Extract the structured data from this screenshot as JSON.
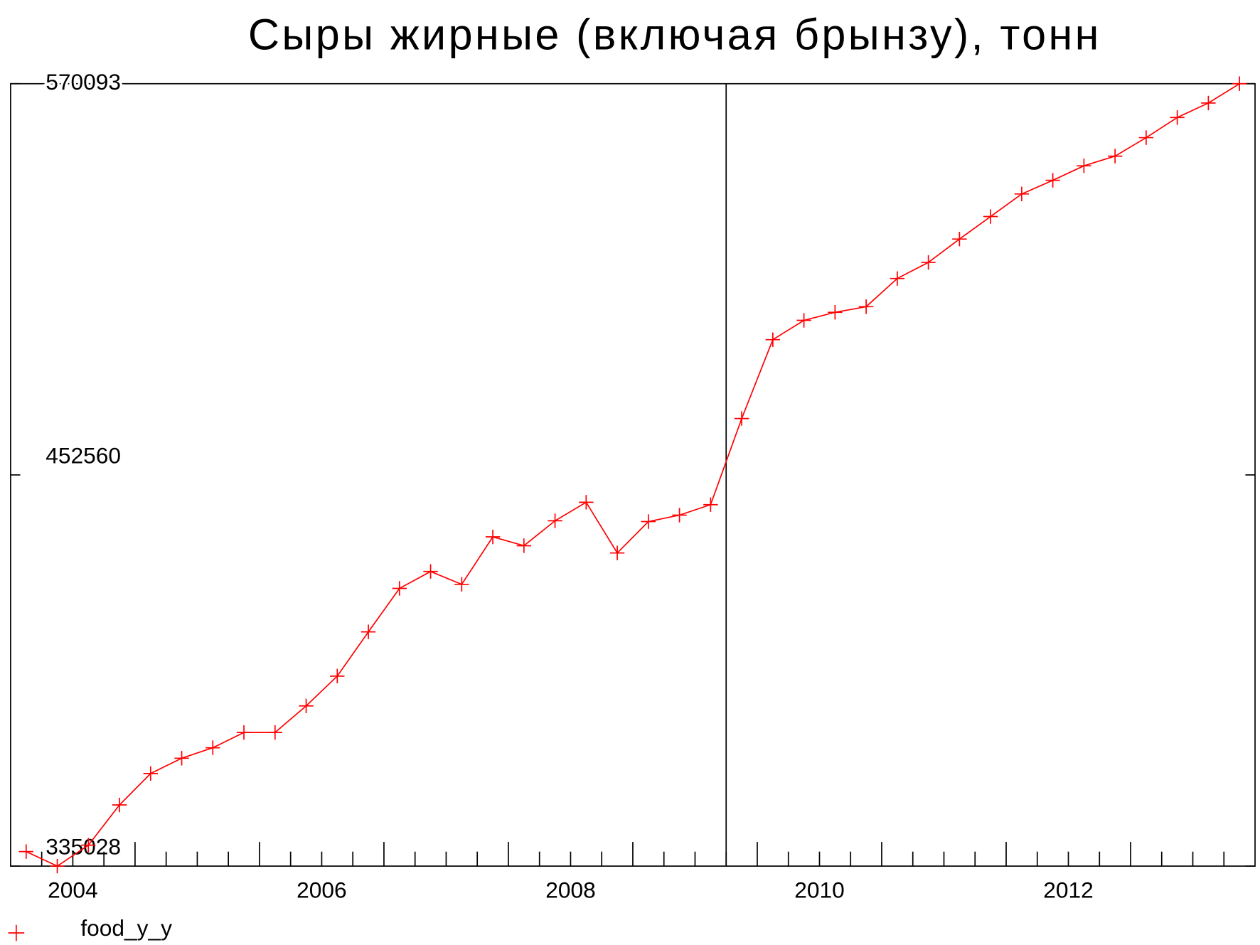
{
  "chart_data": {
    "type": "line",
    "title": "Сыры жирные (включая брынзу), тонн",
    "x": [
      2004.125,
      2004.375,
      2004.625,
      2004.875,
      2005.125,
      2005.375,
      2005.625,
      2005.875,
      2006.125,
      2006.375,
      2006.625,
      2006.875,
      2007.125,
      2007.375,
      2007.625,
      2007.875,
      2008.125,
      2008.375,
      2008.625,
      2008.875,
      2009.125,
      2009.375,
      2009.625,
      2009.875,
      2010.125,
      2010.375,
      2010.625,
      2010.875,
      2011.125,
      2011.375,
      2011.625,
      2011.875,
      2012.125,
      2012.375,
      2012.625,
      2012.875,
      2013.125,
      2013.375,
      2013.625,
      2013.875
    ],
    "series": [
      {
        "name": "food_y_y",
        "color": "#ff0000",
        "values": [
          339387,
          335028,
          341322,
          353413,
          362847,
          367442,
          370586,
          375181,
          375181,
          383161,
          392109,
          405410,
          418469,
          423547,
          419678,
          433946,
          431286,
          438783,
          444345,
          429110,
          438541,
          440476,
          443620,
          469496,
          493195,
          499000,
          501412,
          503105,
          511569,
          516406,
          523419,
          530190,
          536961,
          541072,
          545425,
          548327,
          553889,
          559935,
          564288,
          570093
        ]
      }
    ],
    "xlim": [
      2004,
      2014
    ],
    "xticks": [
      {
        "value": 2004.5,
        "label": "2004"
      },
      {
        "value": 2006.5,
        "label": "2006"
      },
      {
        "value": 2008.5,
        "label": "2008"
      },
      {
        "value": 2010.5,
        "label": "2010"
      },
      {
        "value": 2012.5,
        "label": "2012"
      }
    ],
    "ylim": [
      335028,
      570093
    ],
    "yticks": [
      335028,
      452560,
      570093
    ],
    "vline": 2009.75,
    "legend": "bottom-left"
  }
}
